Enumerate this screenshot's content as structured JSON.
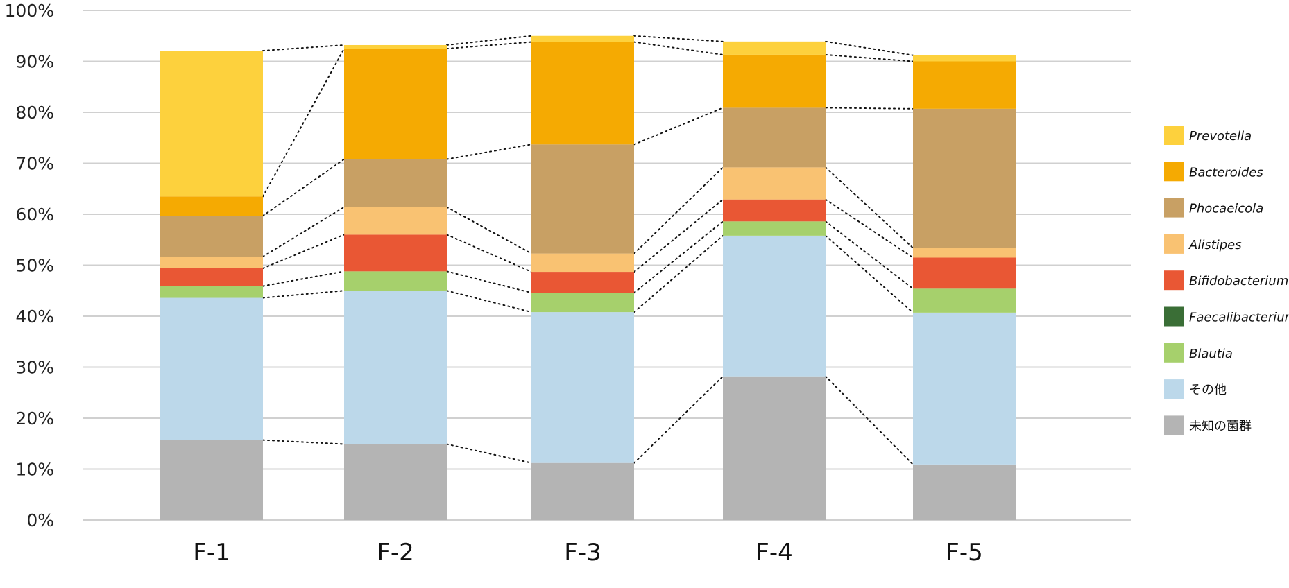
{
  "chart_data": {
    "type": "bar",
    "stacked": true,
    "percent": true,
    "title": "",
    "xlabel": "",
    "ylabel": "",
    "ylim": [
      0,
      100
    ],
    "yticks": [
      "0%",
      "10%",
      "20%",
      "30%",
      "40%",
      "50%",
      "60%",
      "70%",
      "80%",
      "90%",
      "100%"
    ],
    "grid": true,
    "legend_position": "right",
    "connector_lines": "dotted",
    "categories": [
      "F-1",
      "F-2",
      "F-3",
      "F-4",
      "F-5"
    ],
    "series": [
      {
        "name": "未知の菌群",
        "italic": false,
        "color": "#b4b4b4",
        "values": [
          15.7,
          14.9,
          11.2,
          28.2,
          10.9
        ]
      },
      {
        "name": "その他",
        "italic": false,
        "color": "#bcd8ea",
        "values": [
          27.9,
          30.1,
          29.6,
          27.6,
          29.8
        ]
      },
      {
        "name": "Blautia",
        "italic": true,
        "color": "#a6d06c",
        "values": [
          2.3,
          3.8,
          3.8,
          2.8,
          4.7
        ]
      },
      {
        "name": "Faecalibacterium",
        "italic": true,
        "color": "#3a6e36",
        "values": [
          0,
          0,
          0,
          0,
          0
        ]
      },
      {
        "name": "Bifidobacterium",
        "italic": true,
        "color": "#e95734",
        "values": [
          3.5,
          7.2,
          4.1,
          4.3,
          6.1
        ]
      },
      {
        "name": "Alistipes",
        "italic": true,
        "color": "#f9c272",
        "values": [
          2.3,
          5.4,
          3.6,
          6.3,
          1.9
        ]
      },
      {
        "name": "Phocaeicola",
        "italic": true,
        "color": "#c8a064",
        "values": [
          8.0,
          9.4,
          21.4,
          11.7,
          27.3
        ]
      },
      {
        "name": "Bacteroides",
        "italic": true,
        "color": "#f5aa02",
        "values": [
          3.8,
          21.7,
          20.1,
          10.4,
          9.3
        ]
      },
      {
        "name": "Prevotella",
        "italic": true,
        "color": "#fdd13d",
        "values": [
          28.6,
          0.7,
          1.2,
          2.6,
          1.2
        ]
      }
    ],
    "legend_order": [
      "Prevotella",
      "Bacteroides",
      "Phocaeicola",
      "Alistipes",
      "Bifidobacterium",
      "Faecalibacterium",
      "Blautia",
      "その他",
      "未知の菌群"
    ]
  }
}
